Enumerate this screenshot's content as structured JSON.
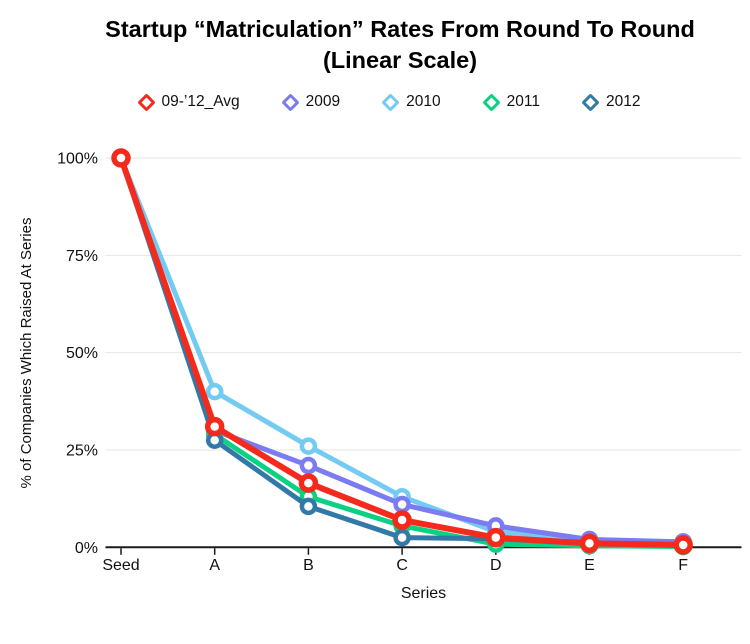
{
  "title": {
    "line1": "Startup “Matriculation” Rates From Round To Round",
    "line2": "(Linear Scale)"
  },
  "chart_data": {
    "type": "line",
    "title": "Startup “Matriculation” Rates From Round To Round (Linear Scale)",
    "categories": [
      "Seed",
      "A",
      "B",
      "C",
      "D",
      "E",
      "F"
    ],
    "series": [
      {
        "name": "09-’12_Avg",
        "color": "#f42a1d",
        "values": [
          100,
          31,
          16.5,
          7,
          2.5,
          1,
          0.6
        ]
      },
      {
        "name": "2009",
        "color": "#7b7bf2",
        "values": [
          100,
          30,
          21,
          11,
          5.5,
          2,
          1.4
        ]
      },
      {
        "name": "2010",
        "color": "#74cbf2",
        "values": [
          100,
          40,
          26,
          13,
          4,
          2,
          1.2
        ]
      },
      {
        "name": "2011",
        "color": "#0bd183",
        "values": [
          100,
          29,
          13,
          5.5,
          0.8,
          0.4,
          0.2
        ]
      },
      {
        "name": "2012",
        "color": "#3379a8",
        "values": [
          100,
          27.5,
          10.5,
          2.5,
          2.2,
          0.9,
          0.5
        ]
      }
    ],
    "xlabel": "Series",
    "ylabel": "% of Companies Which Raised At Series",
    "yticks": [
      {
        "label": "100%",
        "value": 100
      },
      {
        "label": "75%",
        "value": 75
      },
      {
        "label": "50%",
        "value": 50
      },
      {
        "label": "25%",
        "value": 25
      },
      {
        "label": "0%",
        "value": 0
      }
    ],
    "ylim": [
      0,
      100
    ],
    "grid": true,
    "legend_position": "top",
    "marker_style": "open-circle",
    "grid_color": "#e6e6e6",
    "axis_color": "#1a1a1a"
  }
}
